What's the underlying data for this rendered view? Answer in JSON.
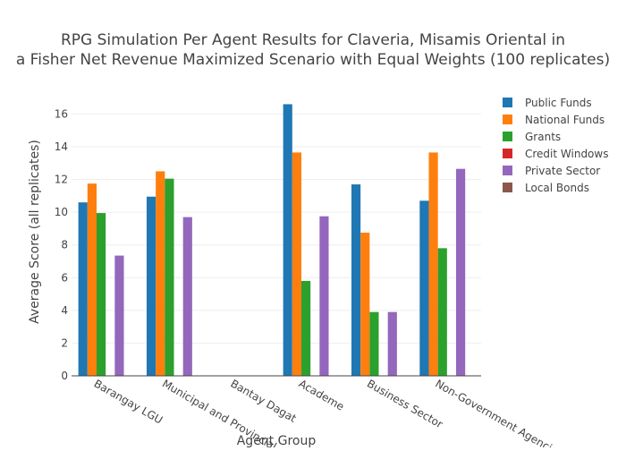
{
  "chart_data": {
    "type": "bar",
    "title_line1": "RPG Simulation Per Agent Results for Claveria, Misamis Oriental in",
    "title_line2": "a Fisher Net Revenue Maximized Scenario with Equal Weights (100 replicates)",
    "xlabel": "Agent Group",
    "ylabel": "Average Score (all replicates)",
    "ylim": [
      0,
      17.5
    ],
    "yticks": [
      0,
      2,
      4,
      6,
      8,
      10,
      12,
      14,
      16
    ],
    "grid": true,
    "legend_position": "right",
    "categories": [
      "Barangay LGU",
      "Municipal and Provincial",
      "Bantay Dagat",
      "Academe",
      "Business Sector",
      "Non-Government Agencies"
    ],
    "series": [
      {
        "name": "Public Funds",
        "color": "#1f77b4",
        "values": [
          10.6,
          10.95,
          0,
          16.6,
          11.7,
          10.7
        ]
      },
      {
        "name": "National Funds",
        "color": "#ff7f0e",
        "values": [
          11.75,
          12.5,
          0,
          13.65,
          8.75,
          13.65
        ]
      },
      {
        "name": "Grants",
        "color": "#2ca02c",
        "values": [
          9.95,
          12.05,
          0,
          5.8,
          3.9,
          7.8
        ]
      },
      {
        "name": "Credit Windows",
        "color": "#d62728",
        "values": [
          0,
          0,
          0,
          0,
          0,
          0
        ]
      },
      {
        "name": "Private Sector",
        "color": "#9467bd",
        "values": [
          7.35,
          9.7,
          0,
          9.75,
          3.9,
          12.65
        ]
      },
      {
        "name": "Local Bonds",
        "color": "#8c564b",
        "values": [
          0,
          0,
          0,
          0,
          0,
          0
        ]
      }
    ]
  }
}
